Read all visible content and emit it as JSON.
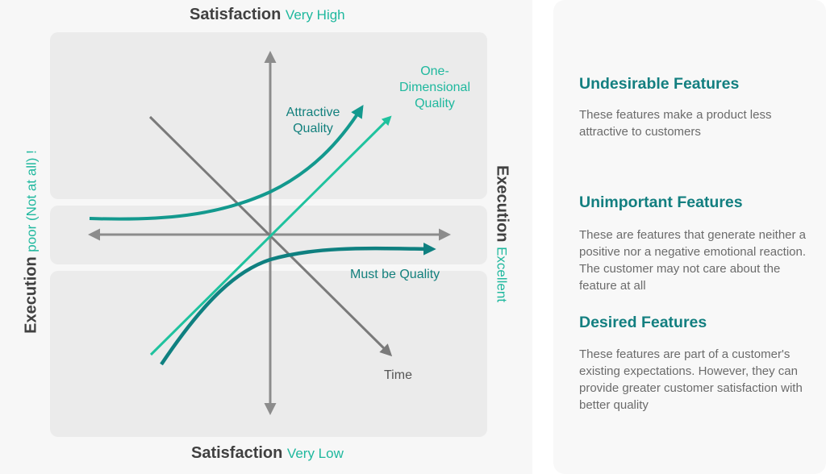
{
  "diagram": {
    "top_axis": {
      "title": "Satisfaction",
      "qualifier": "Very High"
    },
    "bottom_axis": {
      "title": "Satisfaction",
      "qualifier": "Very Low"
    },
    "left_axis": {
      "title": "Execution",
      "qualifier": "poor  (Not at all) !"
    },
    "right_axis": {
      "title": "Execution",
      "qualifier": "Excellent"
    },
    "curves": {
      "attractive_quality": "Attractive Quality",
      "one_dimensional_quality": "One- Dimensional Quality",
      "must_be_quality": "Must be Quality",
      "time": "Time"
    },
    "colors": {
      "axis_gray": "#8c8c8c",
      "attractive": "#13998e",
      "one_dimensional": "#1fc29e",
      "must_be": "#0f8080",
      "title_teal": "#137f80",
      "accent_green": "#1fb89e"
    }
  },
  "features": [
    {
      "title": "Undesirable Features",
      "description": "These features make a product less attractive to customers"
    },
    {
      "title": "Unimportant Features",
      "description": "These are features that generate neither a positive nor a negative emotional reaction. The customer may not care about the feature at all"
    },
    {
      "title": "Desired Features",
      "description": "These features are part of a customer's existing expectations. However, they can provide greater customer satisfaction with better quality"
    }
  ]
}
